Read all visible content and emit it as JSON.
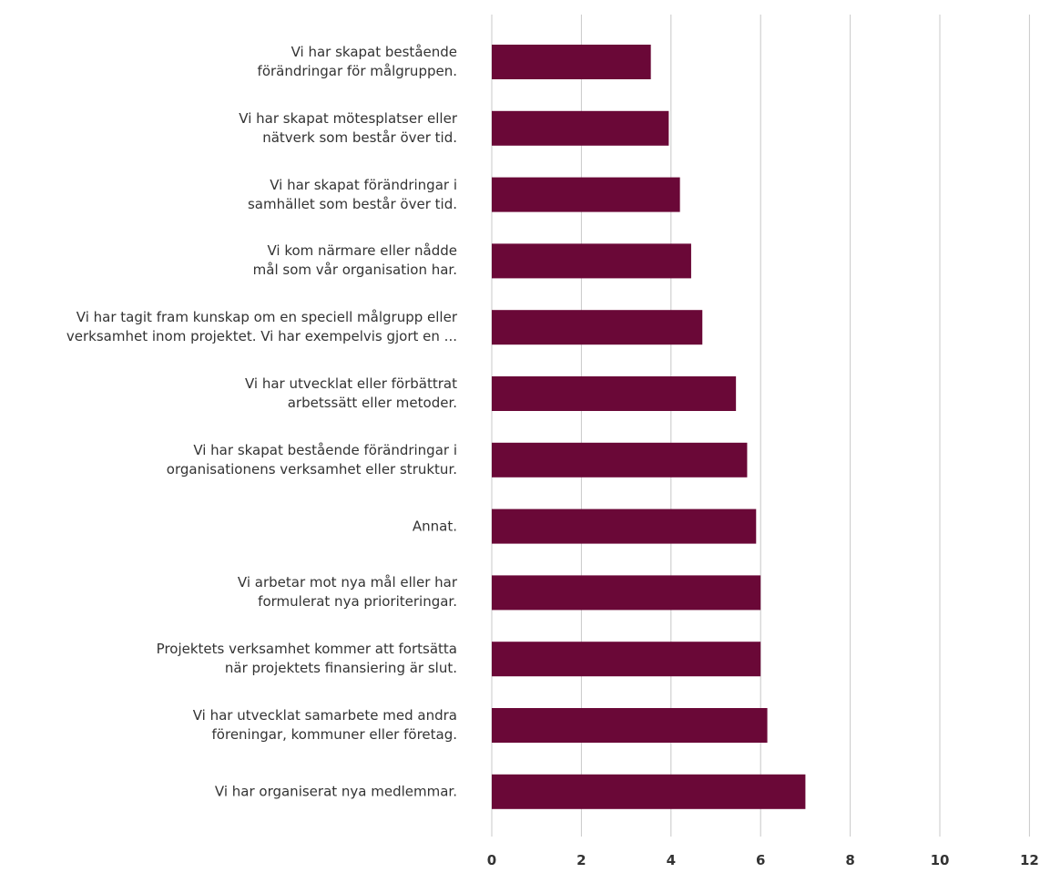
{
  "colors": {
    "bar": "#6a0837",
    "grid": "#c8c8c8",
    "text": "#333333"
  },
  "chart_data": {
    "type": "bar",
    "orientation": "horizontal",
    "categories": [
      [
        "Vi har skapat bestående",
        "förändringar för målgruppen."
      ],
      [
        "Vi har skapat mötesplatser eller",
        "nätverk som består över tid."
      ],
      [
        "Vi har skapat förändringar i",
        "samhället som består över tid."
      ],
      [
        "Vi kom närmare eller nådde",
        "mål som vår organisation har."
      ],
      [
        "Vi har tagit fram kunskap om en speciell målgrupp eller",
        "verksamhet inom projektet. Vi har exempelvis gjort en ..."
      ],
      [
        "Vi har utvecklat eller förbättrat",
        "arbetssätt eller metoder."
      ],
      [
        "Vi har skapat bestående förändringar i",
        "organisationens verksamhet eller struktur."
      ],
      [
        "Annat."
      ],
      [
        "Vi arbetar mot nya mål eller har",
        "formulerat nya prioriteringar."
      ],
      [
        "Projektets verksamhet kommer att fortsätta",
        "när projektets finansiering är slut."
      ],
      [
        "Vi har utvecklat samarbete med andra",
        "föreningar, kommuner eller företag."
      ],
      [
        "Vi har organiserat nya medlemmar."
      ]
    ],
    "values": [
      3.55,
      3.95,
      4.2,
      4.45,
      4.7,
      5.45,
      5.7,
      5.9,
      6.0,
      6.0,
      6.15,
      7.0
    ],
    "xlim": [
      0,
      12
    ],
    "xticks": [
      "0",
      "2",
      "4",
      "6",
      "8",
      "10",
      "12"
    ],
    "grid": "vertical",
    "legend": "none"
  }
}
